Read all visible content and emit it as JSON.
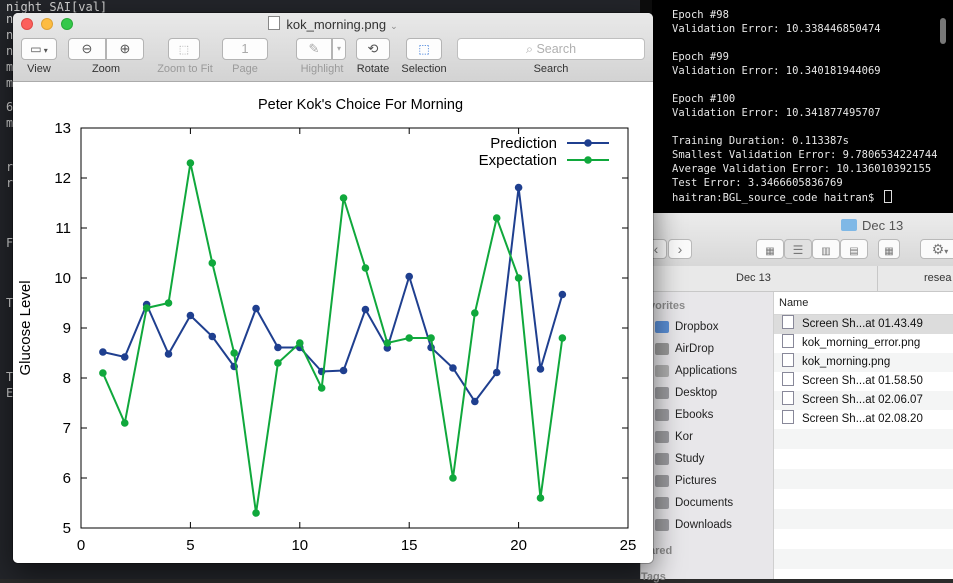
{
  "background_terminal": {
    "lines": [
      "night_SAI[val]",
      "n",
      "n",
      "n",
      "m",
      "m",
      "6",
      "m",
      "r(",
      "r(",
      "F",
      "T",
      "T,",
      "EN"
    ]
  },
  "terminal": {
    "lines": [
      "Epoch #98",
      "Validation Error: 10.338446850474",
      "",
      "Epoch #99",
      "Validation Error: 10.340181944069",
      "",
      "Epoch #100",
      "Validation Error: 10.341877495707",
      "",
      "Training Duration: 0.113387s",
      "Smallest Validation Error: 9.7806534224744",
      "Average Validation Error: 10.136010392155",
      "Test Error: 3.3466605836769"
    ],
    "prompt": "haitran:BGL_source_code haitran$ "
  },
  "finder": {
    "title": "Dec 13",
    "path_segments": [
      "Dec 13",
      "resea"
    ],
    "sidebar": {
      "favorites_label": "vorites",
      "shared_label": "ared",
      "tags_label": "Tags",
      "items": [
        "Dropbox",
        "AirDrop",
        "Applications",
        "Desktop",
        "Ebooks",
        "Kor",
        "Study",
        "Pictures",
        "Documents",
        "Downloads"
      ]
    },
    "list_header": "Name",
    "files": [
      {
        "name": "Screen Sh...at 01.43.49",
        "selected": true
      },
      {
        "name": "kok_morning_error.png",
        "selected": false
      },
      {
        "name": "kok_morning.png",
        "selected": false
      },
      {
        "name": "Screen Sh...at 01.58.50",
        "selected": false
      },
      {
        "name": "Screen Sh...at 02.06.07",
        "selected": false
      },
      {
        "name": "Screen Sh...at 02.08.20",
        "selected": false
      }
    ]
  },
  "preview": {
    "title": "kok_morning.png",
    "toolbar": {
      "view_label": "View",
      "zoom_label": "Zoom",
      "zoom_to_fit_label": "Zoom to Fit",
      "page_label": "Page",
      "page_value": "1",
      "highlight_label": "Highlight",
      "rotate_label": "Rotate",
      "selection_label": "Selection",
      "search_label": "Search",
      "search_placeholder": "Search"
    }
  },
  "colors": {
    "prediction": "#1f3f8f",
    "expectation": "#10a83c",
    "traffic_close": "#fc605c",
    "traffic_minimize": "#fdbc40",
    "traffic_zoom": "#34c84a"
  },
  "chart_data": {
    "type": "line",
    "title": "Peter Kok's Choice For Morning",
    "xlabel": "",
    "ylabel": "Glucose Level",
    "xlim": [
      0,
      25
    ],
    "ylim": [
      5,
      13
    ],
    "xticks": [
      0,
      5,
      10,
      15,
      20,
      25
    ],
    "yticks": [
      5,
      6,
      7,
      8,
      9,
      10,
      11,
      12,
      13
    ],
    "legend_position": "top-right",
    "x": [
      1,
      2,
      3,
      4,
      5,
      6,
      7,
      8,
      9,
      10,
      11,
      12,
      13,
      14,
      15,
      16,
      17,
      18,
      19,
      20,
      21,
      22
    ],
    "series": [
      {
        "name": "Prediction",
        "values": [
          8.52,
          8.42,
          9.47,
          8.48,
          9.25,
          8.83,
          8.23,
          9.39,
          8.61,
          8.61,
          8.13,
          8.15,
          9.37,
          8.6,
          10.03,
          8.61,
          8.2,
          7.53,
          8.11,
          11.81,
          8.18,
          9.67
        ]
      },
      {
        "name": "Expectation",
        "values": [
          8.1,
          7.1,
          9.4,
          9.5,
          12.3,
          10.3,
          8.5,
          5.3,
          8.3,
          8.7,
          7.8,
          11.6,
          10.2,
          8.7,
          8.8,
          8.8,
          6.0,
          9.3,
          11.2,
          10.0,
          5.6,
          8.8
        ]
      }
    ]
  }
}
